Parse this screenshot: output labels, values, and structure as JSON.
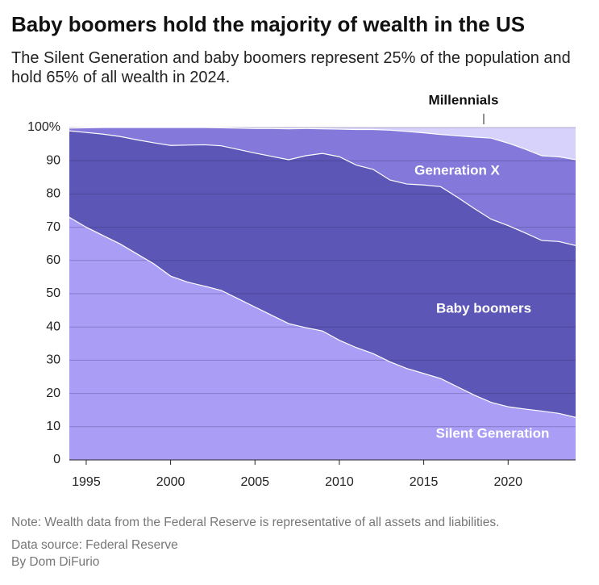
{
  "chart_data": {
    "type": "stacked-area",
    "title": "Baby boomers hold the majority of wealth in the US",
    "subtitle": "The Silent Generation and baby boomers represent 25% of the population and hold 65% of all wealth in 2024.",
    "note": "Note: Wealth data from the Federal Reserve is representative of all assets and liabilities.",
    "source": "Data source: Federal Reserve",
    "byline": "By Dom DiFurio",
    "x": [
      1994,
      1995,
      1996,
      1997,
      1998,
      1999,
      2000,
      2001,
      2002,
      2003,
      2004,
      2005,
      2006,
      2007,
      2008,
      2009,
      2010,
      2011,
      2012,
      2013,
      2014,
      2015,
      2016,
      2017,
      2018,
      2019,
      2020,
      2021,
      2022,
      2023,
      2024
    ],
    "series": [
      {
        "name": "Silent Generation",
        "color": "#a99df6",
        "values": [
          73,
          70,
          67.5,
          65,
          62,
          59,
          55.3,
          53.5,
          52.3,
          51,
          48.5,
          46,
          43.5,
          41,
          39.8,
          38.8,
          36,
          33.8,
          32,
          29.5,
          27.5,
          26,
          24.5,
          22,
          19.5,
          17.3,
          16,
          15.3,
          14.7,
          14,
          12.8
        ]
      },
      {
        "name": "Baby boomers",
        "color": "#5c56b6",
        "values": [
          26,
          28.5,
          30.5,
          32.3,
          34.3,
          36.4,
          39.3,
          41.2,
          42.5,
          43.5,
          44.9,
          46.3,
          47.8,
          49.3,
          51.7,
          53.4,
          55.2,
          54.9,
          55.4,
          54.7,
          55.5,
          56.7,
          57.7,
          57,
          56.1,
          55.1,
          54.5,
          53,
          51.3,
          51.7,
          51.7
        ]
      },
      {
        "name": "Generation X",
        "color": "#8479da",
        "values": [
          0.8,
          1.4,
          2,
          2.7,
          3.7,
          4.6,
          5.4,
          5.3,
          5.2,
          5.4,
          6.4,
          7.4,
          8.4,
          9.3,
          8.2,
          7.4,
          8.3,
          10.7,
          12,
          15,
          15.8,
          15.7,
          15.7,
          18.5,
          21.5,
          24.4,
          24.8,
          25.2,
          25.5,
          25.5,
          25.8
        ]
      },
      {
        "name": "Millennials",
        "color": "#d6d2fb",
        "values": [
          0.2,
          0.1,
          0,
          0,
          0,
          0,
          0,
          0,
          0,
          0.1,
          0.2,
          0.3,
          0.3,
          0.4,
          0.3,
          0.4,
          0.5,
          0.6,
          0.6,
          0.8,
          1.2,
          1.6,
          2.1,
          2.5,
          2.9,
          3.2,
          4.7,
          6.5,
          8.5,
          8.8,
          9.7
        ]
      }
    ],
    "xlim": [
      1994,
      2024
    ],
    "xticks": [
      1995,
      2000,
      2005,
      2010,
      2015,
      2020
    ],
    "ylim": [
      0,
      100
    ],
    "yticks": [
      0,
      10,
      20,
      30,
      40,
      50,
      60,
      70,
      80,
      90,
      {
        "value": 100,
        "label": "100%"
      }
    ],
    "grid": true
  }
}
